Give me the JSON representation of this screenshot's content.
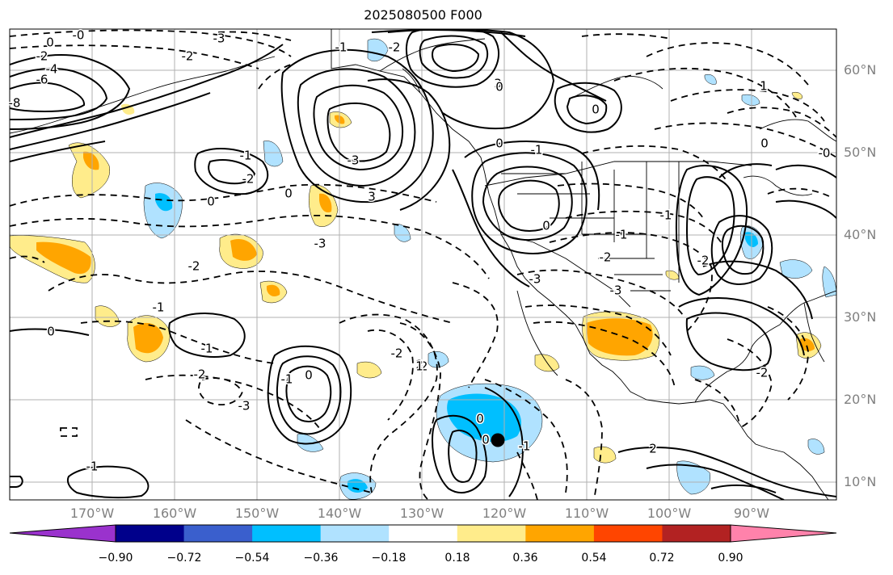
{
  "title": "2025080500 F000",
  "lat_labels": [
    "60°N",
    "50°N",
    "40°N",
    "30°N",
    "20°N",
    "10°N"
  ],
  "lon_labels": [
    "170°W",
    "160°W",
    "150°W",
    "140°W",
    "130°W",
    "120°W",
    "110°W",
    "100°W",
    "90°W"
  ],
  "colorbar": {
    "ticks": [
      "−0.90",
      "−0.72",
      "−0.54",
      "−0.36",
      "−0.18",
      "0.18",
      "0.36",
      "0.54",
      "0.72",
      "0.90"
    ],
    "colors": [
      "#9a32cd",
      "#00008b",
      "#3a5fcd",
      "#00bfff",
      "#b0e2ff",
      "#ffffff",
      "#ffec8b",
      "#ffa500",
      "#ff4500",
      "#b22222",
      "#ff82ab"
    ]
  },
  "contour_labels": [
    "0",
    "-0",
    "-2",
    "-4",
    "-6",
    "-8",
    "-3",
    "-2",
    "-1",
    "-2",
    "3",
    "-1",
    "-2",
    "-3",
    "-3",
    "3",
    "0",
    "-2",
    "0",
    "-1",
    "0",
    "-1",
    "-2",
    "-3",
    "-2",
    "-2",
    "2",
    "1",
    "0",
    "-1",
    "-2",
    "-3",
    "-1",
    "-3",
    "0",
    "0",
    "0",
    "0",
    "-1",
    "2",
    "-2",
    "-2",
    "-1",
    "0",
    "-0",
    "1",
    "0",
    "0",
    "-1",
    "-1"
  ],
  "marker": {
    "lon": -120.6,
    "lat": 15.0
  }
}
